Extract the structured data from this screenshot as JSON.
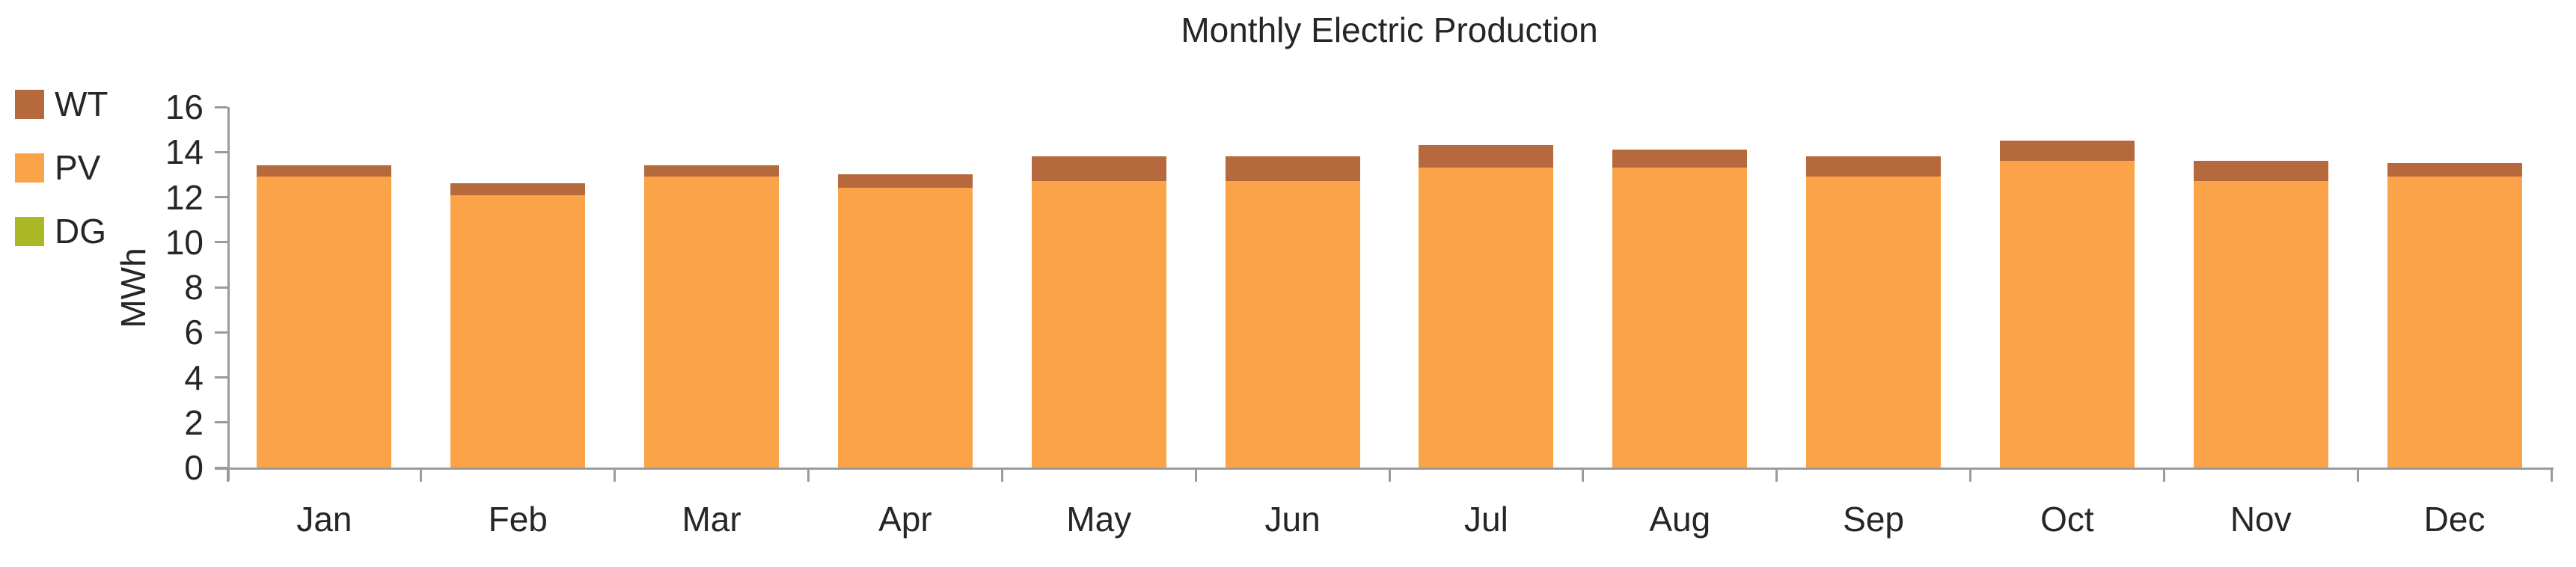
{
  "chart_data": {
    "type": "bar",
    "stacked": true,
    "title": "Monthly Electric Production",
    "ylabel": "MWh",
    "ylim": [
      0,
      16
    ],
    "yticks": [
      0,
      2,
      4,
      6,
      8,
      10,
      12,
      14,
      16
    ],
    "grid": false,
    "legend_position": "left",
    "categories": [
      "Jan",
      "Feb",
      "Mar",
      "Apr",
      "May",
      "Jun",
      "Jul",
      "Aug",
      "Sep",
      "Oct",
      "Nov",
      "Dec"
    ],
    "series": [
      {
        "name": "WT",
        "color": "#b5693c",
        "values": [
          0.5,
          0.5,
          0.5,
          0.6,
          1.1,
          1.1,
          1.0,
          0.8,
          0.9,
          0.9,
          0.9,
          0.6
        ]
      },
      {
        "name": "PV",
        "color": "#fba348",
        "values": [
          12.9,
          12.1,
          12.9,
          12.4,
          12.7,
          12.7,
          13.3,
          13.3,
          12.9,
          13.6,
          12.7,
          12.9
        ]
      },
      {
        "name": "DG",
        "color": "#a9b823",
        "values": [
          0,
          0,
          0,
          0,
          0,
          0,
          0,
          0,
          0,
          0,
          0,
          0
        ]
      }
    ],
    "totals": [
      13.4,
      12.6,
      13.4,
      13.0,
      13.8,
      13.8,
      14.3,
      14.1,
      13.8,
      14.5,
      13.6,
      13.5
    ]
  },
  "colors": {
    "axis": "#9b9b9b",
    "text": "#262626",
    "background": "#ffffff"
  }
}
